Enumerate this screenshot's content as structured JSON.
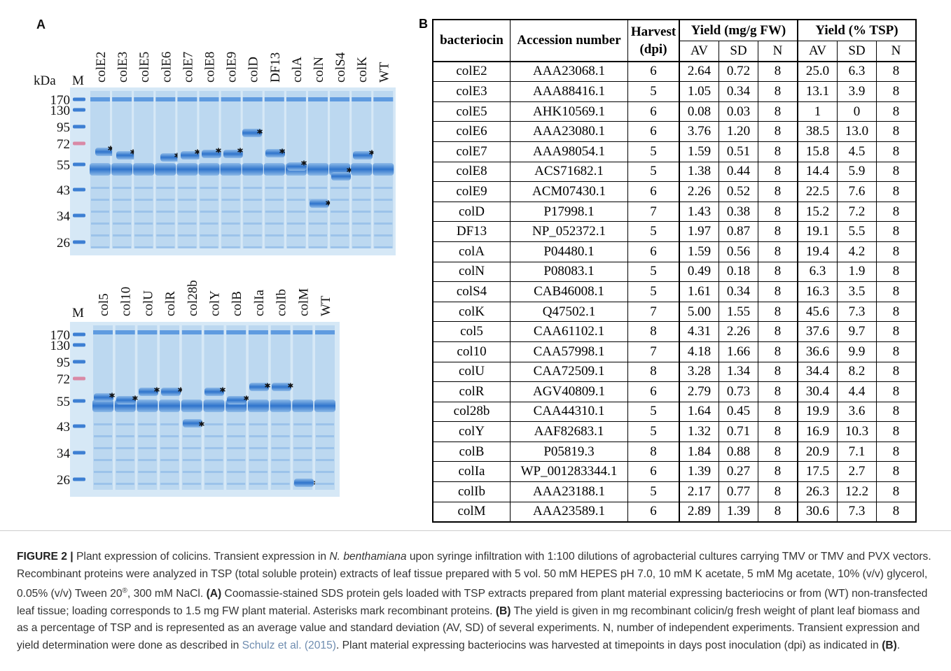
{
  "panel_a": {
    "label": "A",
    "unit": "kDa",
    "marker_lane": "M",
    "gel1": {
      "lanes": [
        "colE2",
        "colE3",
        "colE5",
        "colE6",
        "colE7",
        "colE8",
        "colE9",
        "colD",
        "DF13",
        "colA",
        "colN",
        "colS4",
        "colK",
        "WT"
      ],
      "markers": [
        "170",
        "130",
        "95",
        "72",
        "55",
        "43",
        "34",
        "26"
      ]
    },
    "gel2": {
      "marker_lane": "M",
      "lanes": [
        "col5",
        "col10",
        "colU",
        "colR",
        "col28b",
        "colY",
        "colB",
        "colIa",
        "colIb",
        "colM",
        "WT"
      ],
      "markers": [
        "170",
        "130",
        "95",
        "72",
        "55",
        "43",
        "34",
        "26"
      ]
    }
  },
  "panel_b": {
    "label": "B",
    "header": {
      "bacteriocin": "bacteriocin",
      "accession": "Accession number",
      "harvest": [
        "Harvest",
        "(dpi)"
      ],
      "yield_fw": "Yield (mg/g FW)",
      "yield_tsp": "Yield (% TSP)",
      "sub": [
        "AV",
        "SD",
        "N",
        "AV",
        "SD",
        "N"
      ]
    },
    "rows": [
      [
        "colE2",
        "AAA23068.1",
        "6",
        "2.64",
        "0.72",
        "8",
        "25.0",
        "6.3",
        "8"
      ],
      [
        "colE3",
        "AAA88416.1",
        "5",
        "1.05",
        "0.34",
        "8",
        "13.1",
        "3.9",
        "8"
      ],
      [
        "colE5",
        "AHK10569.1",
        "6",
        "0.08",
        "0.03",
        "8",
        "1",
        "0",
        "8"
      ],
      [
        "colE6",
        "AAA23080.1",
        "6",
        "3.76",
        "1.20",
        "8",
        "38.5",
        "13.0",
        "8"
      ],
      [
        "colE7",
        "AAA98054.1",
        "5",
        "1.59",
        "0.51",
        "8",
        "15.8",
        "4.5",
        "8"
      ],
      [
        "colE8",
        "ACS71682.1",
        "5",
        "1.38",
        "0.44",
        "8",
        "14.4",
        "5.9",
        "8"
      ],
      [
        "colE9",
        "ACM07430.1",
        "6",
        "2.26",
        "0.52",
        "8",
        "22.5",
        "7.6",
        "8"
      ],
      [
        "colD",
        "P17998.1",
        "7",
        "1.43",
        "0.38",
        "8",
        "15.2",
        "7.2",
        "8"
      ],
      [
        "DF13",
        "NP_052372.1",
        "5",
        "1.97",
        "0.87",
        "8",
        "19.1",
        "5.5",
        "8"
      ],
      [
        "colA",
        "P04480.1",
        "6",
        "1.59",
        "0.56",
        "8",
        "19.4",
        "4.2",
        "8"
      ],
      [
        "colN",
        "P08083.1",
        "5",
        "0.49",
        "0.18",
        "8",
        "6.3",
        "1.9",
        "8"
      ],
      [
        "colS4",
        "CAB46008.1",
        "5",
        "1.61",
        "0.34",
        "8",
        "16.3",
        "3.5",
        "8"
      ],
      [
        "colK",
        "Q47502.1",
        "7",
        "5.00",
        "1.55",
        "8",
        "45.6",
        "7.3",
        "8"
      ],
      [
        "col5",
        "CAA61102.1",
        "8",
        "4.31",
        "2.26",
        "8",
        "37.6",
        "9.7",
        "8"
      ],
      [
        "col10",
        "CAA57998.1",
        "7",
        "4.18",
        "1.66",
        "8",
        "36.6",
        "9.9",
        "8"
      ],
      [
        "colU",
        "CAA72509.1",
        "8",
        "3.28",
        "1.34",
        "8",
        "34.4",
        "8.2",
        "8"
      ],
      [
        "colR",
        "AGV40809.1",
        "6",
        "2.79",
        "0.73",
        "8",
        "30.4",
        "4.4",
        "8"
      ],
      [
        "col28b",
        "CAA44310.1",
        "5",
        "1.64",
        "0.45",
        "8",
        "19.9",
        "3.6",
        "8"
      ],
      [
        "colY",
        "AAF82683.1",
        "5",
        "1.32",
        "0.71",
        "8",
        "16.9",
        "10.3",
        "8"
      ],
      [
        "colB",
        "P05819.3",
        "8",
        "1.84",
        "0.88",
        "8",
        "20.9",
        "7.1",
        "8"
      ],
      [
        "colIa",
        "WP_001283344.1",
        "6",
        "1.39",
        "0.27",
        "8",
        "17.5",
        "2.7",
        "8"
      ],
      [
        "colIb",
        "AAA23188.1",
        "5",
        "2.17",
        "0.77",
        "8",
        "26.3",
        "12.2",
        "8"
      ],
      [
        "colM",
        "AAA23589.1",
        "6",
        "2.89",
        "1.39",
        "8",
        "30.6",
        "7.3",
        "8"
      ]
    ]
  },
  "caption": {
    "runs": [
      "FIGURE 2 |",
      " Plant expression of colicins. Transient expression in ",
      "N. benthamiana",
      " upon syringe infiltration with 1:100 dilutions of agrobacterial cultures carrying TMV or TMV and PVX vectors. Recombinant proteins were analyzed in TSP (total soluble protein) extracts of leaf tissue prepared with 5 vol. 50 mM HEPES pH 7.0, 10 mM K acetate, 5 mM Mg acetate, 10% (v/v) glycerol, 0.05% (v/v) Tween 20",
      "®",
      ", 300 mM NaCl. ",
      "(A)",
      " Coomassie-stained SDS protein gels loaded with TSP extracts prepared from plant material expressing bacteriocins or from (WT) non-transfected leaf tissue; loading corresponds to 1.5 mg FW plant material. Asterisks mark recombinant proteins. ",
      "(B)",
      " The yield is given in mg recombinant colicin/g fresh weight of plant leaf biomass and as a percentage of TSP and is represented as an average value and standard deviation (AV, SD) of several experiments. N, number of independent experiments. Transient expression and yield determination were done as described in ",
      "Schulz et al. (2015)",
      ". Plant material expressing bacteriocins was harvested at timepoints in days post inoculation (dpi) as indicated in ",
      "(B)",
      "."
    ]
  }
}
